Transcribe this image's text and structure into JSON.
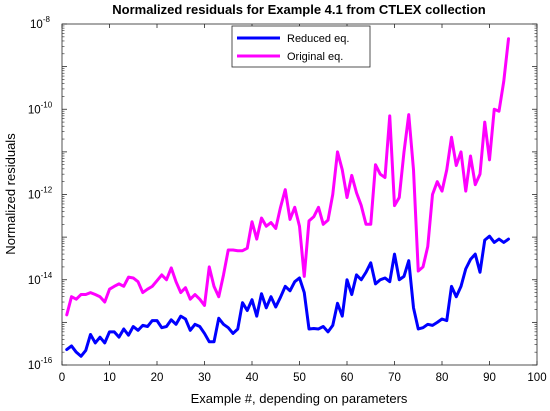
{
  "chart_data": {
    "type": "line",
    "title": "Normalized residuals for Example 4.1 from CTLEX collection",
    "xlabel": "Example #, depending on parameters",
    "ylabel": "Normalized residuals",
    "xlim": [
      0,
      100
    ],
    "ylim": [
      1e-16,
      1e-08
    ],
    "yscale": "log",
    "grid": false,
    "legend_position": "top-center",
    "x_ticks": [
      "0",
      "10",
      "20",
      "30",
      "40",
      "50",
      "60",
      "70",
      "80",
      "90",
      "100"
    ],
    "y_ticks": [
      {
        "base": "10",
        "exp": "-16"
      },
      {
        "base": "10",
        "exp": "-14"
      },
      {
        "base": "10",
        "exp": "-12"
      },
      {
        "base": "10",
        "exp": "-10"
      },
      {
        "base": "10",
        "exp": "-8"
      }
    ],
    "series": [
      {
        "name": "Reduced eq.",
        "color": "#0000ff",
        "x": [
          1,
          2,
          3,
          4,
          5,
          6,
          7,
          8,
          9,
          10,
          11,
          12,
          13,
          14,
          15,
          16,
          17,
          18,
          19,
          20,
          21,
          22,
          23,
          24,
          25,
          26,
          27,
          28,
          29,
          30,
          31,
          32,
          33,
          34,
          35,
          36,
          37,
          38,
          39,
          40,
          41,
          42,
          43,
          44,
          45,
          46,
          47,
          48,
          49,
          50,
          51,
          52,
          53,
          54,
          55,
          56,
          57,
          58,
          59,
          60,
          61,
          62,
          63,
          64,
          65,
          66,
          67,
          68,
          69,
          70,
          71,
          72,
          73,
          74,
          75,
          76,
          77,
          78,
          79,
          80,
          81,
          82,
          83,
          84,
          85,
          86,
          87,
          88,
          89,
          90,
          91,
          92,
          93,
          94
        ],
        "y": [
          2.3e-16,
          2.8e-16,
          2e-16,
          1.6e-16,
          2.2e-16,
          5.2e-16,
          3.3e-16,
          4.5e-16,
          3.3e-16,
          6e-16,
          6e-16,
          4.5e-16,
          7e-16,
          5e-16,
          8e-16,
          6.5e-16,
          8.5e-16,
          8e-16,
          1.1e-15,
          1.1e-15,
          7.5e-16,
          8e-16,
          1.15e-15,
          9e-16,
          1.4e-15,
          1.2e-15,
          6.5e-16,
          9e-16,
          8e-16,
          5.5e-16,
          3.5e-16,
          3.5e-16,
          1.25e-15,
          9e-16,
          7.5e-16,
          5.5e-16,
          7e-16,
          2.9e-15,
          1.9e-15,
          3.4e-15,
          1.4e-15,
          4.7e-15,
          2.2e-15,
          4e-15,
          2.3e-15,
          3.9e-15,
          7e-15,
          5.5e-15,
          9e-15,
          1.1e-14,
          5e-15,
          7e-16,
          7.2e-16,
          7e-16,
          8e-16,
          6e-16,
          8.5e-16,
          2.8e-15,
          1.4e-15,
          1e-14,
          4.5e-15,
          1.3e-14,
          1e-14,
          1.5e-14,
          2.5e-14,
          8e-15,
          1e-14,
          1.1e-14,
          9e-15,
          4e-14,
          1e-14,
          1.2e-14,
          2.8e-14,
          2.2e-15,
          7e-16,
          7.5e-16,
          9e-16,
          8.5e-16,
          1e-15,
          1.2e-15,
          1.1e-15,
          7e-15,
          4e-15,
          7e-15,
          1.8e-14,
          3e-14,
          4e-14,
          1.5e-14,
          8.5e-14,
          1.05e-13,
          7.5e-14,
          9e-14,
          7.5e-14,
          9e-14
        ]
      },
      {
        "name": "Original eq.",
        "color": "#ff00ff",
        "x": [
          1,
          2,
          3,
          4,
          5,
          6,
          7,
          8,
          9,
          10,
          11,
          12,
          13,
          14,
          15,
          16,
          17,
          18,
          19,
          20,
          21,
          22,
          23,
          24,
          25,
          26,
          27,
          28,
          29,
          30,
          31,
          32,
          33,
          34,
          35,
          36,
          37,
          38,
          39,
          40,
          41,
          42,
          43,
          44,
          45,
          46,
          47,
          48,
          49,
          50,
          51,
          52,
          53,
          54,
          55,
          56,
          57,
          58,
          59,
          60,
          61,
          62,
          63,
          64,
          65,
          66,
          67,
          68,
          69,
          70,
          71,
          72,
          73,
          74,
          75,
          76,
          77,
          78,
          79,
          80,
          81,
          82,
          83,
          84,
          85,
          86,
          87,
          88,
          89,
          90,
          91,
          92,
          93,
          94
        ],
        "y": [
          1.5e-15,
          4e-15,
          3.5e-15,
          4.5e-15,
          4.5e-15,
          5e-15,
          4.5e-15,
          4e-15,
          3e-15,
          6e-15,
          7e-15,
          8e-15,
          7e-15,
          1.15e-14,
          1.1e-14,
          9e-15,
          5e-15,
          6e-15,
          7e-15,
          9.5e-15,
          1.3e-14,
          1e-14,
          1.9e-14,
          9e-15,
          5e-15,
          6.5e-15,
          3.5e-15,
          4.5e-15,
          3.5e-15,
          2.5e-15,
          2e-14,
          7e-15,
          4e-15,
          1.3e-14,
          5e-14,
          5e-14,
          4.8e-14,
          4.8e-14,
          5.5e-14,
          2.3e-13,
          9e-14,
          2.8e-13,
          1.8e-13,
          2.2e-13,
          1.6e-13,
          5e-13,
          1.3e-12,
          2.6e-13,
          5e-13,
          1.8e-13,
          1.2e-14,
          2.4e-13,
          3e-13,
          5e-13,
          2e-13,
          2.5e-13,
          1e-12,
          1e-11,
          3.8e-12,
          8.5e-13,
          2.8e-12,
          1.1e-12,
          5.5e-13,
          2e-13,
          2e-13,
          5e-12,
          3e-12,
          2.5e-12,
          7e-11,
          5.5e-13,
          8.5e-13,
          1e-11,
          7.5e-11,
          3.8e-12,
          1.6e-14,
          2e-14,
          6e-14,
          1e-12,
          2e-12,
          1.2e-12,
          3.8e-12,
          2.2e-11,
          4.8e-12,
          1e-11,
          1.2e-12,
          8e-12,
          1.7e-12,
          3e-12,
          5e-11,
          6.5e-12,
          1e-10,
          9e-11,
          4.5e-10,
          4.5e-09
        ]
      }
    ]
  }
}
